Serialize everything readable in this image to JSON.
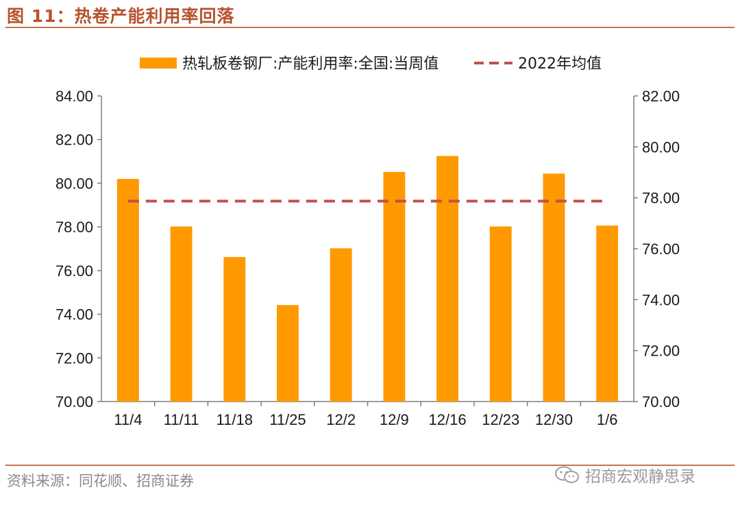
{
  "figure": {
    "title": "图 11：热卷产能利用率回落",
    "source": "资料来源：同花顺、招商证券",
    "watermark": "招商宏观静思录"
  },
  "colors": {
    "bar": "#ff9900",
    "mean_line": "#c0504d",
    "accent": "#b5532f",
    "axis": "#7f7f7f"
  },
  "chart_data": {
    "type": "bar",
    "title": "",
    "categories": [
      "11/4",
      "11/11",
      "11/18",
      "11/25",
      "12/2",
      "12/9",
      "12/16",
      "12/23",
      "12/30",
      "1/6"
    ],
    "series": [
      {
        "name": "热轧板卷钢厂:产能利用率:全国:当周值",
        "kind": "bar",
        "axis": "left",
        "values": [
          80.2,
          78.02,
          76.62,
          74.42,
          77.02,
          80.52,
          81.25,
          78.02,
          80.44,
          78.06
        ]
      },
      {
        "name": "2022年均值",
        "kind": "dashed-line",
        "axis": "left",
        "values": [
          79.18,
          79.18,
          79.18,
          79.18,
          79.18,
          79.18,
          79.18,
          79.18,
          79.18,
          79.18
        ]
      }
    ],
    "y_left": {
      "min": 70,
      "max": 84,
      "step": 2,
      "ticks": [
        "70.00",
        "72.00",
        "74.00",
        "76.00",
        "78.00",
        "80.00",
        "82.00",
        "84.00"
      ]
    },
    "y_right": {
      "min": 70,
      "max": 82,
      "step": 2,
      "ticks": [
        "70.00",
        "72.00",
        "74.00",
        "76.00",
        "78.00",
        "80.00",
        "82.00"
      ]
    },
    "legend_position": "top",
    "grid": false
  }
}
